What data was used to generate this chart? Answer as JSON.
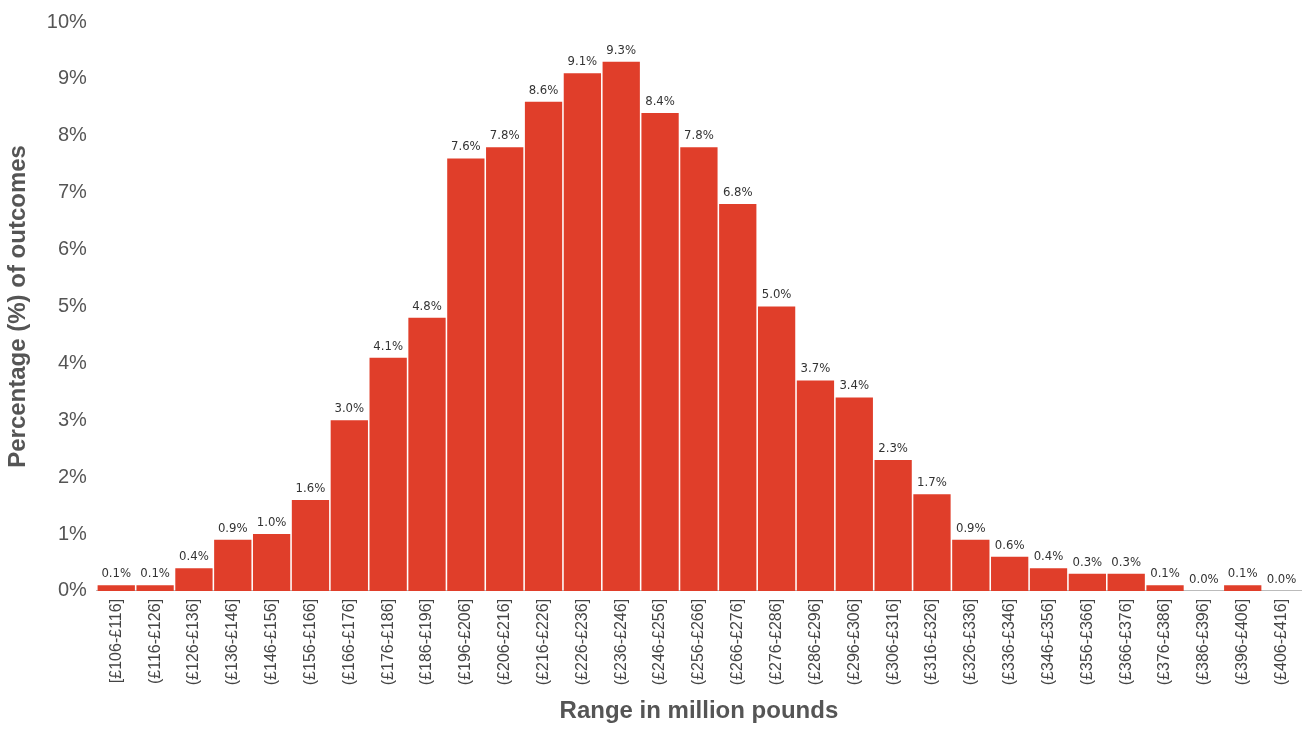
{
  "chart_data": {
    "type": "bar",
    "xlabel": "Range in million pounds",
    "ylabel": "Percentage (%) of outcomes",
    "categories": [
      "[£106-£116]",
      "(£116-£126]",
      "(£126-£136]",
      "(£136-£146]",
      "(£146-£156]",
      "(£156-£166]",
      "(£166-£176]",
      "(£176-£186]",
      "(£186-£196]",
      "(£196-£206]",
      "(£206-£216]",
      "(£216-£226]",
      "(£226-£236]",
      "(£236-£246]",
      "(£246-£256]",
      "(£256-£266]",
      "(£266-£276]",
      "(£276-£286]",
      "(£286-£296]",
      "(£296-£306]",
      "(£306-£316]",
      "(£316-£326]",
      "(£326-£336]",
      "(£336-£346]",
      "(£346-£356]",
      "(£356-£366]",
      "(£366-£376]",
      "(£376-£386]",
      "(£386-£396]",
      "(£396-£406]",
      "(£406-£416]"
    ],
    "values": [
      0.1,
      0.1,
      0.4,
      0.9,
      1.0,
      1.6,
      3.0,
      4.1,
      4.8,
      7.6,
      7.8,
      8.6,
      9.1,
      9.3,
      8.4,
      7.8,
      6.8,
      5.0,
      3.7,
      3.4,
      2.3,
      1.7,
      0.9,
      0.6,
      0.4,
      0.3,
      0.3,
      0.1,
      0.0,
      0.1,
      0.0
    ],
    "value_labels": [
      "0.1%",
      "0.1%",
      "0.4%",
      "0.9%",
      "1.0%",
      "1.6%",
      "3.0%",
      "4.1%",
      "4.8%",
      "7.6%",
      "7.8%",
      "8.6%",
      "9.1%",
      "9.3%",
      "8.4%",
      "7.8%",
      "6.8%",
      "5.0%",
      "3.7%",
      "3.4%",
      "2.3%",
      "1.7%",
      "0.9%",
      "0.6%",
      "0.4%",
      "0.3%",
      "0.3%",
      "0.1%",
      "0.0%",
      "0.1%",
      "0.0%"
    ],
    "color": "#e03e2a",
    "ylim": [
      0,
      10
    ],
    "yticks": [
      {
        "value": 0,
        "label": "0%"
      },
      {
        "value": 1,
        "label": "1%"
      },
      {
        "value": 2,
        "label": "2%"
      },
      {
        "value": 3,
        "label": "3%"
      },
      {
        "value": 4,
        "label": "4%"
      },
      {
        "value": 5,
        "label": "5%"
      },
      {
        "value": 6,
        "label": "6%"
      },
      {
        "value": 7,
        "label": "7%"
      },
      {
        "value": 8,
        "label": "8%"
      },
      {
        "value": 9,
        "label": "9%"
      },
      {
        "value": 10,
        "label": "10%"
      }
    ],
    "grid": false,
    "legend": false
  }
}
